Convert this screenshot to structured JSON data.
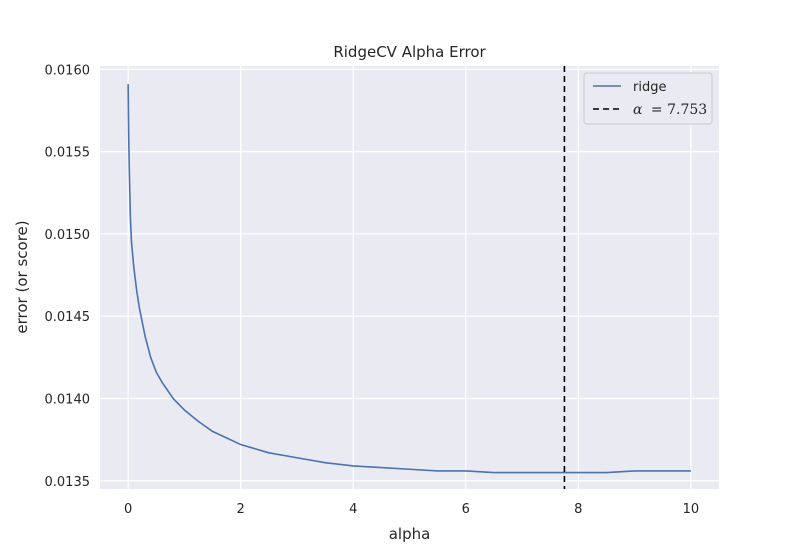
{
  "chart_data": {
    "type": "line",
    "title": "RidgeCV Alpha Error",
    "xlabel": "alpha",
    "ylabel": "error (or score)",
    "xlim": [
      -0.5,
      10.5
    ],
    "ylim": [
      0.01345,
      0.01602
    ],
    "x_ticks": [
      "0",
      "2",
      "4",
      "6",
      "8",
      "10"
    ],
    "y_ticks": [
      "0.0135",
      "0.0140",
      "0.0145",
      "0.0150",
      "0.0155",
      "0.0160"
    ],
    "grid": true,
    "legend_position": "top-right",
    "series": [
      {
        "name": "ridge",
        "color": "#4c72b0",
        "x": [
          0.0,
          0.01,
          0.02,
          0.04,
          0.06,
          0.1,
          0.15,
          0.2,
          0.3,
          0.4,
          0.5,
          0.6,
          0.8,
          1.0,
          1.25,
          1.5,
          2.0,
          2.5,
          3.0,
          3.5,
          4.0,
          4.5,
          5.0,
          5.5,
          6.0,
          6.5,
          7.0,
          7.5,
          8.0,
          8.5,
          9.0,
          9.5,
          10.0
        ],
        "y": [
          0.01591,
          0.0156,
          0.0154,
          0.0151,
          0.01495,
          0.0148,
          0.01466,
          0.01455,
          0.01438,
          0.01425,
          0.01416,
          0.0141,
          0.014,
          0.01393,
          0.01386,
          0.0138,
          0.01372,
          0.01367,
          0.01364,
          0.01361,
          0.01359,
          0.01358,
          0.01357,
          0.01356,
          0.01356,
          0.01355,
          0.01355,
          0.01355,
          0.01355,
          0.01355,
          0.01356,
          0.01356,
          0.01356
        ]
      }
    ],
    "alpha_line": {
      "x": 7.753,
      "label_prefix": "α",
      "label_value": "= 7.753",
      "color": "#000000"
    }
  }
}
